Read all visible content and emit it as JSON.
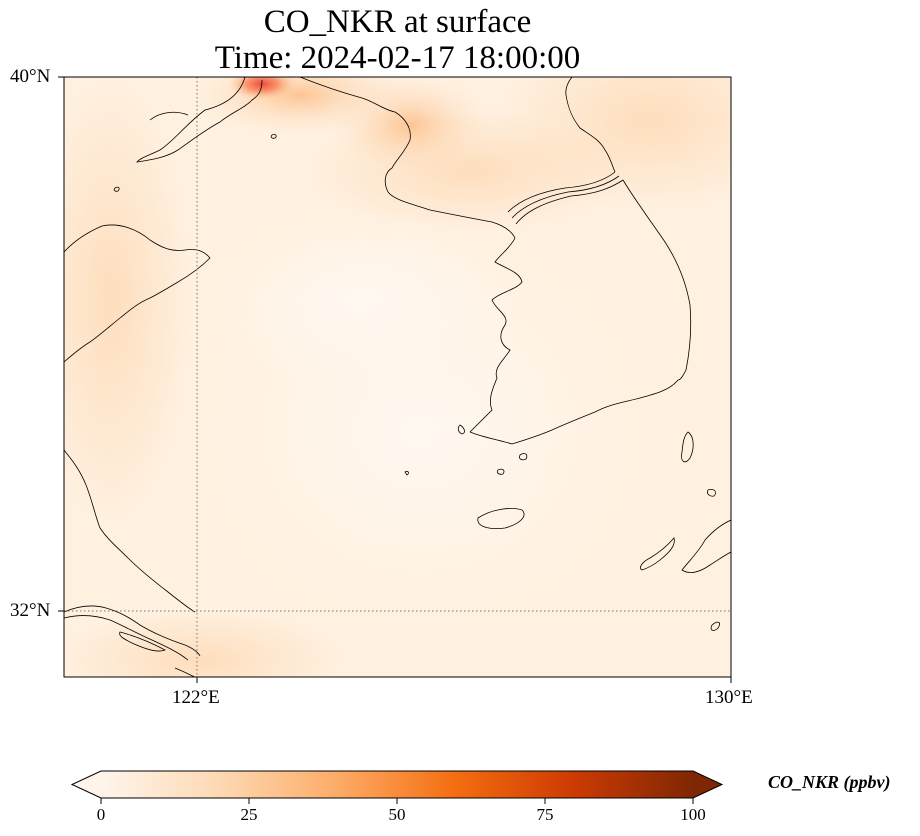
{
  "title_line1": "CO_NKR at surface",
  "title_line2": "Time: 2024-02-17 18:00:00",
  "axes": {
    "lat_labels": [
      "40°N",
      "32°N"
    ],
    "lon_labels": [
      "122°E",
      "130°E"
    ]
  },
  "colorbar": {
    "label": "CO_NKR (ppbv)",
    "ticks": [
      "0",
      "25",
      "50",
      "75",
      "100"
    ],
    "colormap": [
      "#fff5eb",
      "#fdd9b4",
      "#fdab67",
      "#f46d0f",
      "#cc3a03",
      "#7f2704"
    ],
    "extend": "both"
  },
  "field_colors": {
    "background": "#fff0df",
    "high": "#ef4a3a",
    "mid": "#fdc996",
    "low": "#fff7ee"
  }
}
